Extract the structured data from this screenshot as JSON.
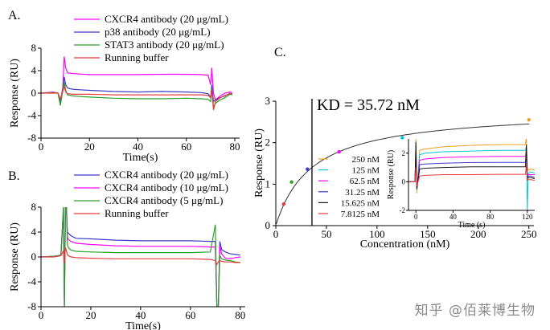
{
  "chart_data": [
    {
      "type": "line",
      "panel": "A.",
      "xlabel": "Time(s)",
      "ylabel": "Response (RU)",
      "xlim": [
        0,
        82
      ],
      "ylim": [
        -8,
        8
      ],
      "xticks": [
        0,
        20,
        40,
        60,
        80
      ],
      "yticks": [
        -8,
        -4,
        0,
        4,
        8
      ],
      "legend_position": "top",
      "series": [
        {
          "name": "CXCR4 antibody (20 μg/mL)",
          "color": "#ff00ff",
          "x": [
            0,
            5,
            7,
            8,
            9,
            9.6,
            10.2,
            11,
            13,
            16,
            20,
            30,
            40,
            50,
            60,
            66,
            69,
            70,
            70.5,
            71.2,
            72,
            74,
            76,
            78,
            79
          ],
          "y": [
            0,
            0.2,
            0,
            -1.5,
            1,
            6.5,
            4.5,
            3.6,
            3.5,
            3.4,
            3.3,
            3.3,
            3.3,
            3.35,
            3.35,
            3.3,
            3.2,
            1.5,
            4.5,
            0,
            -1.2,
            -0.5,
            0,
            0.2,
            0.1
          ]
        },
        {
          "name": "p38 antibody (20 μg/mL)",
          "color": "#3b3bc8",
          "x": [
            0,
            5,
            7,
            8,
            9,
            9.6,
            10.2,
            11,
            13,
            16,
            20,
            30,
            40,
            50,
            60,
            66,
            69,
            70,
            70.5,
            71.2,
            72,
            74,
            76,
            78,
            79
          ],
          "y": [
            0,
            0.1,
            0,
            -1.8,
            0.8,
            2.9,
            1.5,
            0.9,
            0.7,
            0.6,
            0.5,
            0.3,
            0.2,
            0.3,
            0.2,
            0.1,
            -0.1,
            -0.8,
            1.5,
            -1.5,
            -1.2,
            -0.8,
            -0.5,
            0,
            -0.2
          ]
        },
        {
          "name": "STAT3 antibody (20 μg/mL)",
          "color": "#2aa02a",
          "x": [
            0,
            5,
            7,
            8,
            9,
            9.6,
            10.2,
            11,
            13,
            16,
            20,
            30,
            40,
            50,
            60,
            66,
            69,
            70,
            70.5,
            71.2,
            72,
            74,
            76,
            78,
            79
          ],
          "y": [
            0,
            0.1,
            0,
            -2.2,
            0.5,
            2.0,
            0.5,
            -0.3,
            -0.5,
            -0.6,
            -0.7,
            -0.9,
            -1.0,
            -1.0,
            -0.9,
            -1.0,
            -1.1,
            -1.5,
            0.8,
            -2.5,
            -1.8,
            -1.2,
            -0.8,
            -0.2,
            -0.3
          ]
        },
        {
          "name": "Running buffer",
          "color": "#e83a3a",
          "x": [
            0,
            5,
            7,
            8,
            9,
            9.6,
            10.2,
            11,
            13,
            16,
            20,
            30,
            40,
            50,
            60,
            66,
            69,
            70,
            70.5,
            71.2,
            72,
            74,
            76,
            78,
            79
          ],
          "y": [
            0,
            0,
            0,
            -1.0,
            0.3,
            1.2,
            0.2,
            -0.1,
            -0.2,
            -0.2,
            -0.2,
            -0.3,
            -0.3,
            -0.3,
            -0.3,
            -0.3,
            -0.4,
            -0.8,
            0.5,
            -3.0,
            -1.5,
            -0.8,
            -0.4,
            -0.1,
            -0.1
          ]
        }
      ]
    },
    {
      "type": "line",
      "panel": "B.",
      "xlabel": "Time(s)",
      "ylabel": "Response (RU)",
      "xlim": [
        0,
        82
      ],
      "ylim": [
        -8,
        8
      ],
      "xticks": [
        0,
        20,
        40,
        60,
        80
      ],
      "yticks": [
        -8,
        -4,
        0,
        4,
        8
      ],
      "legend_position": "top",
      "series": [
        {
          "name": "CXCR4 antibody (20 μg/mL)",
          "color": "#3b3bc8",
          "x": [
            0,
            5,
            7,
            8,
            9,
            9.4,
            9.8,
            10.2,
            10.6,
            11,
            12,
            14,
            20,
            30,
            40,
            50,
            60,
            68,
            70,
            70.6,
            71.2,
            71.8,
            72.5,
            74,
            76,
            78,
            80
          ],
          "y": [
            0,
            0.1,
            0.2,
            0.3,
            8,
            -8,
            8,
            8,
            4,
            3.8,
            3.4,
            3.0,
            2.9,
            2.7,
            2.6,
            2.6,
            2.6,
            2.5,
            2.5,
            -8,
            -8,
            2.5,
            1.2,
            0.8,
            0.5,
            0.4,
            0.3
          ]
        },
        {
          "name": "CXCR4 antibody (10 μg/mL)",
          "color": "#ff00ff",
          "x": [
            0,
            5,
            7,
            8,
            9,
            9.4,
            9.8,
            10.2,
            10.6,
            11,
            12,
            14,
            20,
            30,
            40,
            50,
            60,
            68,
            70,
            70.6,
            71.2,
            71.8,
            72.5,
            74,
            76,
            78,
            80
          ],
          "y": [
            0,
            0.1,
            0.2,
            0.3,
            8,
            -8,
            8,
            8,
            3.2,
            2.8,
            2.5,
            2.2,
            2.0,
            1.8,
            1.7,
            1.7,
            1.7,
            1.6,
            1.6,
            -8,
            -8,
            1.8,
            0.5,
            -0.2,
            -0.3,
            -0.1,
            0.0
          ]
        },
        {
          "name": "CXCR4 antibody (5 μg/mL)",
          "color": "#2aa02a",
          "x": [
            0,
            5,
            7,
            8,
            9,
            9.4,
            9.8,
            10.2,
            10.6,
            11,
            12,
            14,
            20,
            30,
            40,
            50,
            60,
            68,
            70,
            70.6,
            71.2,
            71.8,
            72.5,
            74,
            76,
            78,
            80
          ],
          "y": [
            0,
            0.1,
            0.2,
            0.3,
            8,
            -8,
            8,
            8,
            2.0,
            1.5,
            1.1,
            0.9,
            0.8,
            0.7,
            0.7,
            0.7,
            0.7,
            0.8,
            5.2,
            -8,
            -8,
            0.2,
            -0.3,
            -0.5,
            -0.6,
            -0.8,
            -0.9
          ]
        },
        {
          "name": "Running buffer",
          "color": "#e83a3a",
          "x": [
            0,
            5,
            7,
            8,
            9,
            9.4,
            9.8,
            10.2,
            10.6,
            11,
            12,
            14,
            20,
            30,
            40,
            50,
            60,
            68,
            70,
            70.6,
            71.2,
            71.8,
            72.5,
            74,
            76,
            78,
            80
          ],
          "y": [
            0,
            0.0,
            0.1,
            0.2,
            1.0,
            -1.0,
            1.5,
            1.0,
            0.4,
            0.2,
            0.0,
            -0.1,
            -0.2,
            -0.3,
            -0.3,
            -0.3,
            -0.3,
            -0.4,
            -0.6,
            -1.2,
            -0.8,
            -0.6,
            -0.7,
            -0.8,
            -0.8,
            -0.9,
            -0.9
          ]
        }
      ]
    },
    {
      "type": "scatter",
      "panel": "C.",
      "annotation": "KD = 35.72 nM",
      "xlabel": "Concentration (nM)",
      "ylabel": "Response (RU)",
      "xlim": [
        0,
        255
      ],
      "ylim": [
        0,
        3
      ],
      "xticks": [
        0,
        50,
        100,
        150,
        200,
        250
      ],
      "yticks": [
        0,
        1,
        2,
        3
      ],
      "kd_line_x": 35.72,
      "fit": {
        "model": "Rmax*C/(KD+C)",
        "Rmax": 2.8,
        "KD": 35.72
      },
      "points": [
        {
          "x": 7.8125,
          "y": 0.52,
          "color": "#e83a3a"
        },
        {
          "x": 15.625,
          "y": 1.05,
          "color": "#2aa02a"
        },
        {
          "x": 31.25,
          "y": 1.36,
          "color": "#3b3bc8"
        },
        {
          "x": 62.5,
          "y": 1.78,
          "color": "#ff00ff"
        },
        {
          "x": 125,
          "y": 2.12,
          "color": "#00c8d2"
        },
        {
          "x": 250,
          "y": 2.55,
          "color": "#f0a020"
        }
      ],
      "inset": {
        "type": "line",
        "xlabel": "Time (s)",
        "ylabel": "Response (RU)",
        "xlim": [
          -8,
          128
        ],
        "ylim": [
          -2,
          3
        ],
        "xticks": [
          0,
          40,
          80,
          120
        ],
        "yticks": [
          -2,
          0,
          2
        ],
        "legend_position": "left",
        "series": [
          {
            "name": "250 nM",
            "color": "#f0a020",
            "x": [
              -8,
              -1,
              0,
              1,
              4,
              10,
              30,
              60,
              90,
              118,
              119,
              120,
              121,
              124,
              128
            ],
            "y": [
              0,
              0,
              3,
              -0.8,
              2.2,
              2.3,
              2.45,
              2.55,
              2.6,
              2.6,
              3.2,
              1.0,
              0.8,
              0.9,
              0.8
            ]
          },
          {
            "name": "125 nM",
            "color": "#00c8d2",
            "x": [
              -8,
              -1,
              0,
              1,
              4,
              10,
              30,
              60,
              90,
              118,
              119,
              120,
              121,
              124,
              128
            ],
            "y": [
              0,
              0,
              2.5,
              -0.6,
              1.9,
              2.0,
              2.1,
              2.15,
              2.2,
              2.2,
              2.5,
              -2,
              0.6,
              0.7,
              0.6
            ]
          },
          {
            "name": "62.5 nM",
            "color": "#ff00ff",
            "x": [
              -8,
              -1,
              0,
              1,
              4,
              10,
              30,
              60,
              90,
              118,
              119,
              120,
              121,
              124,
              128
            ],
            "y": [
              0,
              0,
              2.2,
              -0.5,
              1.5,
              1.6,
              1.7,
              1.75,
              1.78,
              1.78,
              2.2,
              0.4,
              0.5,
              0.5,
              0.5
            ]
          },
          {
            "name": "31.25 nM",
            "color": "#3b3bc8",
            "x": [
              -8,
              -1,
              0,
              1,
              4,
              10,
              30,
              60,
              90,
              118,
              119,
              120,
              121,
              124,
              128
            ],
            "y": [
              0,
              0,
              2.0,
              -0.4,
              1.2,
              1.25,
              1.3,
              1.35,
              1.36,
              1.36,
              2.0,
              0.3,
              0.4,
              0.4,
              0.3
            ]
          },
          {
            "name": "15.625 nM",
            "color": "#1a1a1a",
            "x": [
              -8,
              -1,
              0,
              1,
              4,
              10,
              30,
              60,
              90,
              118,
              119,
              120,
              121,
              124,
              128
            ],
            "y": [
              0,
              0,
              2.8,
              -0.5,
              0.9,
              0.95,
              1.0,
              1.05,
              1.05,
              1.05,
              2.6,
              0.2,
              0.3,
              0.3,
              0.2
            ]
          },
          {
            "name": "7.8125 nM",
            "color": "#e83a3a",
            "x": [
              -8,
              -1,
              0,
              1,
              4,
              10,
              30,
              60,
              90,
              118,
              119,
              120,
              121,
              124,
              128
            ],
            "y": [
              0,
              0,
              1.0,
              -0.3,
              0.4,
              0.45,
              0.5,
              0.5,
              0.52,
              0.52,
              1.2,
              0.1,
              0.15,
              0.15,
              0.1
            ]
          }
        ]
      }
    }
  ],
  "watermark": "知乎 @佰莱博生物"
}
